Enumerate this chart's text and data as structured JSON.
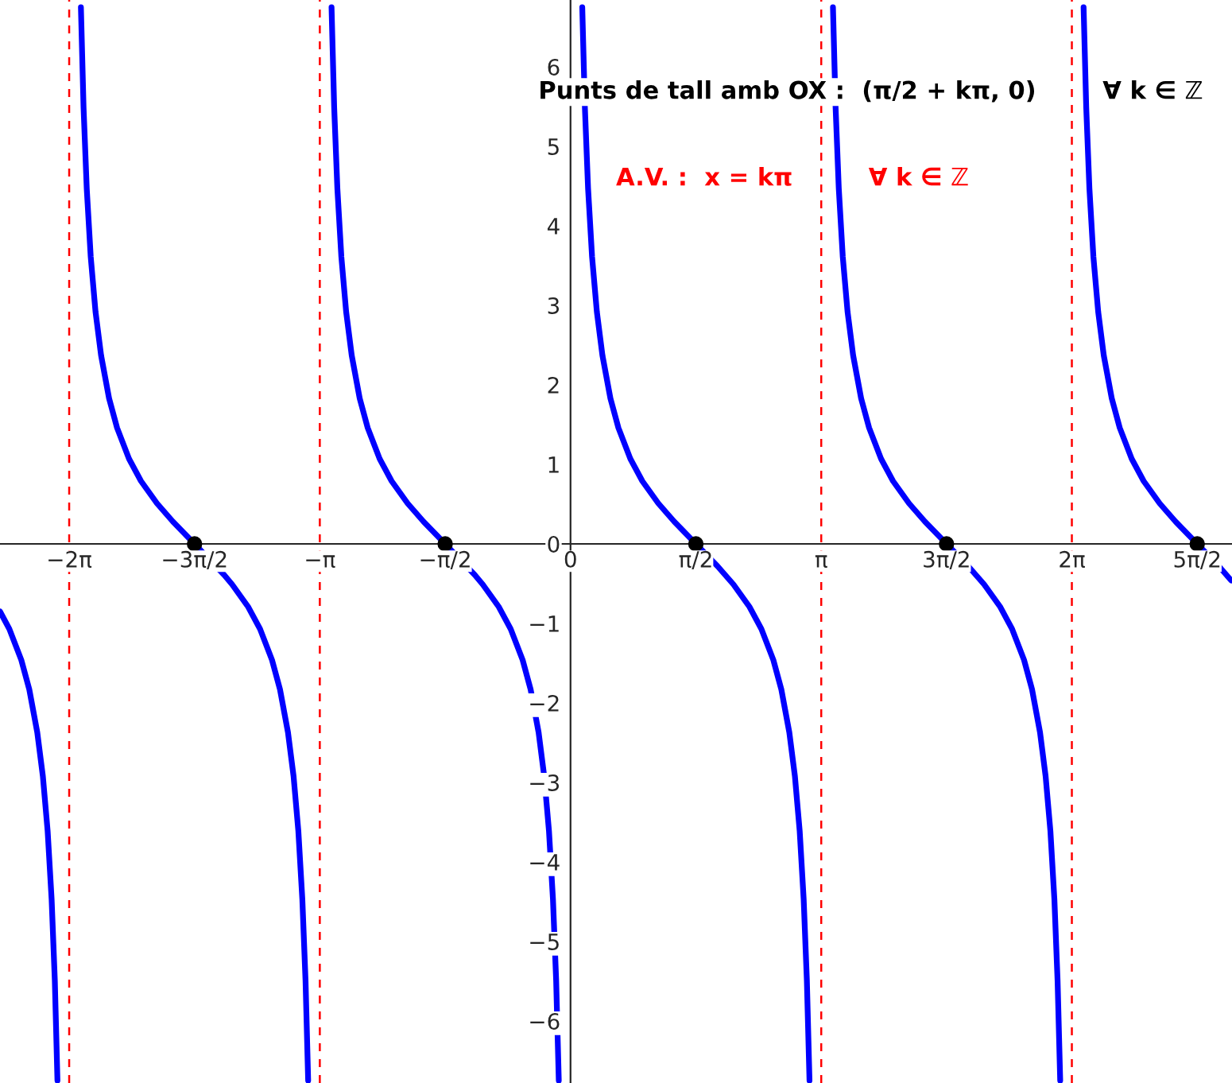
{
  "chart_data": {
    "type": "line",
    "annotations": [
      "Punts de tall amb OX :  (π/2 + kπ, 0)",
      "∀ k ∈ ℤ",
      "A.V. :  x = kπ",
      "∀ k ∈ ℤ"
    ],
    "xlim": [
      -7.15,
      8.29
    ],
    "ylim": [
      -6.78,
      6.84
    ],
    "xticks": [
      {
        "value": -6.283,
        "label": "−2π"
      },
      {
        "value": -4.712,
        "label": "−3π/2"
      },
      {
        "value": -3.142,
        "label": "−π"
      },
      {
        "value": -1.571,
        "label": "−π/2"
      },
      0,
      {
        "value": 1.571,
        "label": "π/2"
      },
      {
        "value": 3.142,
        "label": "π"
      },
      {
        "value": 4.712,
        "label": "3π/2"
      },
      {
        "value": 6.283,
        "label": "2π"
      },
      {
        "value": 7.854,
        "label": "5π/2"
      }
    ],
    "yticks": [
      {
        "value": -6,
        "label": "−6"
      },
      {
        "value": -5,
        "label": "−5"
      },
      {
        "value": -4,
        "label": "−4"
      },
      {
        "value": -3,
        "label": "−3"
      },
      {
        "value": -2,
        "label": "−2"
      },
      {
        "value": -1,
        "label": "−1"
      },
      0,
      1,
      2,
      3,
      4,
      5,
      6
    ],
    "grid": false,
    "legend": false,
    "marker": "none",
    "line_style": "solid",
    "ref_lines": [
      {
        "axis": "x",
        "value": -6.283,
        "color": "#ff0000",
        "line_style": "dashed"
      },
      {
        "axis": "x",
        "value": -3.142,
        "color": "#ff0000",
        "line_style": "dashed"
      },
      {
        "axis": "x",
        "value": 3.142,
        "color": "#ff0000",
        "line_style": "dashed"
      },
      {
        "axis": "x",
        "value": 6.283,
        "color": "#ff0000",
        "line_style": "dashed"
      }
    ],
    "series": [
      {
        "color": "#0000ff",
        "x": [
          -7.15,
          -7.033,
          -6.883,
          -6.783,
          -6.683,
          -6.613,
          -6.553,
          -6.503,
          -6.463,
          -6.43
        ],
        "values": [
          -0.85,
          -1.07,
          -1.46,
          -1.83,
          -2.37,
          -2.92,
          -3.61,
          -4.47,
          -5.49,
          -6.75
        ]
      },
      {
        "color": "#0000ff",
        "x": [
          -6.136,
          -6.103,
          -6.063,
          -6.013,
          -5.953,
          -5.883,
          -5.783,
          -5.683,
          -5.533,
          -5.383,
          -5.183,
          -4.983,
          -4.712,
          -4.341,
          -4.241,
          -4.041,
          -3.891,
          -3.741,
          -3.641,
          -3.541,
          -3.471,
          -3.411,
          -3.361,
          -3.321,
          -3.288
        ],
        "values": [
          6.75,
          5.49,
          4.47,
          3.61,
          2.92,
          2.37,
          1.83,
          1.46,
          1.07,
          0.79,
          0.51,
          0.28,
          0,
          -0.39,
          -0.51,
          -0.79,
          -1.07,
          -1.46,
          -1.83,
          -2.37,
          -2.92,
          -3.61,
          -4.47,
          -5.49,
          -6.75
        ]
      },
      {
        "color": "#0000ff",
        "x": [
          -2.995,
          -2.962,
          -2.922,
          -2.872,
          -2.812,
          -2.742,
          -2.642,
          -2.542,
          -2.392,
          -2.242,
          -2.042,
          -1.842,
          -1.571,
          -1.2,
          -1.1,
          -0.9,
          -0.75,
          -0.6,
          -0.5,
          -0.4,
          -0.33,
          -0.27,
          -0.22,
          -0.18,
          -0.147
        ],
        "values": [
          6.75,
          5.49,
          4.47,
          3.61,
          2.92,
          2.37,
          1.83,
          1.46,
          1.07,
          0.79,
          0.51,
          0.28,
          0,
          -0.39,
          -0.51,
          -0.79,
          -1.07,
          -1.46,
          -1.83,
          -2.37,
          -2.92,
          -3.61,
          -4.47,
          -5.49,
          -6.75
        ]
      },
      {
        "color": "#0000ff",
        "x": [
          0.147,
          0.18,
          0.22,
          0.27,
          0.33,
          0.4,
          0.5,
          0.6,
          0.75,
          0.9,
          1.1,
          1.3,
          1.571,
          1.842,
          2.042,
          2.242,
          2.392,
          2.542,
          2.642,
          2.742,
          2.812,
          2.872,
          2.922,
          2.962,
          2.995
        ],
        "values": [
          6.75,
          5.49,
          4.47,
          3.61,
          2.92,
          2.37,
          1.83,
          1.46,
          1.07,
          0.79,
          0.51,
          0.28,
          0,
          -0.28,
          -0.51,
          -0.79,
          -1.07,
          -1.46,
          -1.83,
          -2.37,
          -2.92,
          -3.61,
          -4.47,
          -5.49,
          -6.75
        ]
      },
      {
        "color": "#0000ff",
        "x": [
          3.289,
          3.322,
          3.362,
          3.412,
          3.472,
          3.542,
          3.642,
          3.742,
          3.892,
          4.042,
          4.242,
          4.442,
          4.713,
          4.984,
          5.184,
          5.384,
          5.534,
          5.684,
          5.784,
          5.884,
          5.954,
          6.014,
          6.064,
          6.104,
          6.137
        ],
        "values": [
          6.75,
          5.49,
          4.47,
          3.61,
          2.92,
          2.37,
          1.83,
          1.46,
          1.07,
          0.79,
          0.51,
          0.28,
          0,
          -0.28,
          -0.51,
          -0.79,
          -1.07,
          -1.46,
          -1.83,
          -2.37,
          -2.92,
          -3.61,
          -4.47,
          -5.49,
          -6.75
        ]
      },
      {
        "color": "#0000ff",
        "x": [
          6.43,
          6.463,
          6.503,
          6.553,
          6.613,
          6.683,
          6.783,
          6.883,
          7.033,
          7.183,
          7.383,
          7.583,
          7.854,
          8.125,
          8.28
        ],
        "values": [
          6.75,
          5.49,
          4.47,
          3.61,
          2.92,
          2.37,
          1.83,
          1.46,
          1.07,
          0.79,
          0.51,
          0.28,
          0,
          -0.28,
          -0.46
        ]
      },
      {
        "type": "scatter",
        "marker": "circle",
        "color": "#000000",
        "x": [
          -4.712,
          -1.571,
          1.571,
          4.712,
          7.854
        ],
        "values": [
          0,
          0,
          0,
          0,
          0
        ]
      }
    ]
  }
}
